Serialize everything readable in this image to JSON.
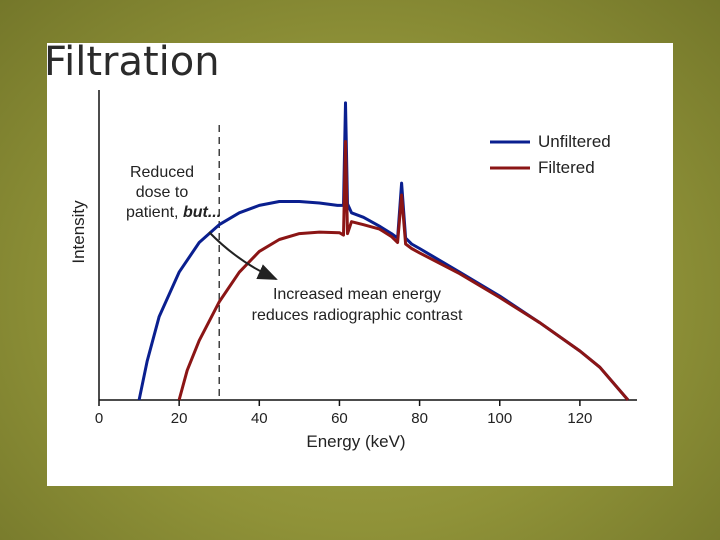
{
  "slide": {
    "title": "Filtration",
    "background_color": "#8b8e3a"
  },
  "chart_data": {
    "type": "line",
    "xlabel": "Energy (keV)",
    "ylabel": "Intensity",
    "xlim": [
      0,
      135
    ],
    "ylim": [
      0,
      1.05
    ],
    "x_ticks": [
      "0",
      "20",
      "40",
      "60",
      "80",
      "100",
      "120"
    ],
    "legend_position": "top-right",
    "grid": false,
    "series": [
      {
        "name": "Unfiltered",
        "color": "#0a1f8f",
        "points": [
          [
            10,
            0
          ],
          [
            12,
            0.13
          ],
          [
            15,
            0.28
          ],
          [
            20,
            0.43
          ],
          [
            25,
            0.53
          ],
          [
            30,
            0.59
          ],
          [
            35,
            0.63
          ],
          [
            40,
            0.655
          ],
          [
            45,
            0.668
          ],
          [
            50,
            0.668
          ],
          [
            55,
            0.663
          ],
          [
            59.5,
            0.655
          ],
          [
            61,
            0.655
          ],
          [
            61.5,
            1.0
          ],
          [
            62,
            0.66
          ],
          [
            63,
            0.63
          ],
          [
            66,
            0.615
          ],
          [
            70,
            0.585
          ],
          [
            73,
            0.56
          ],
          [
            74.5,
            0.545
          ],
          [
            75.5,
            0.73
          ],
          [
            76.5,
            0.545
          ],
          [
            78,
            0.525
          ],
          [
            80,
            0.51
          ],
          [
            90,
            0.43
          ],
          [
            100,
            0.35
          ],
          [
            110,
            0.26
          ],
          [
            120,
            0.165
          ],
          [
            125,
            0.11
          ],
          [
            132,
            0
          ]
        ]
      },
      {
        "name": "Filtered",
        "color": "#8b1515",
        "points": [
          [
            20,
            0
          ],
          [
            22,
            0.1
          ],
          [
            25,
            0.2
          ],
          [
            30,
            0.33
          ],
          [
            35,
            0.43
          ],
          [
            40,
            0.5
          ],
          [
            45,
            0.54
          ],
          [
            50,
            0.56
          ],
          [
            55,
            0.565
          ],
          [
            60,
            0.563
          ],
          [
            61,
            0.555
          ],
          [
            61.5,
            0.87
          ],
          [
            62,
            0.56
          ],
          [
            63,
            0.6
          ],
          [
            66,
            0.59
          ],
          [
            70,
            0.575
          ],
          [
            73,
            0.55
          ],
          [
            74.5,
            0.53
          ],
          [
            75.5,
            0.69
          ],
          [
            76.5,
            0.525
          ],
          [
            78,
            0.51
          ],
          [
            80,
            0.495
          ],
          [
            90,
            0.425
          ],
          [
            100,
            0.345
          ],
          [
            110,
            0.26
          ],
          [
            120,
            0.165
          ],
          [
            125,
            0.11
          ],
          [
            132,
            0
          ]
        ]
      }
    ],
    "marker_line": {
      "x": 30,
      "style": "dashed"
    },
    "annotations": {
      "reduced_dose": [
        "Reduced",
        "dose to",
        "patient, "
      ],
      "reduced_dose_emphasis": "but...",
      "mean_energy": [
        "Increased mean energy",
        "reduces radiographic contrast"
      ]
    }
  }
}
